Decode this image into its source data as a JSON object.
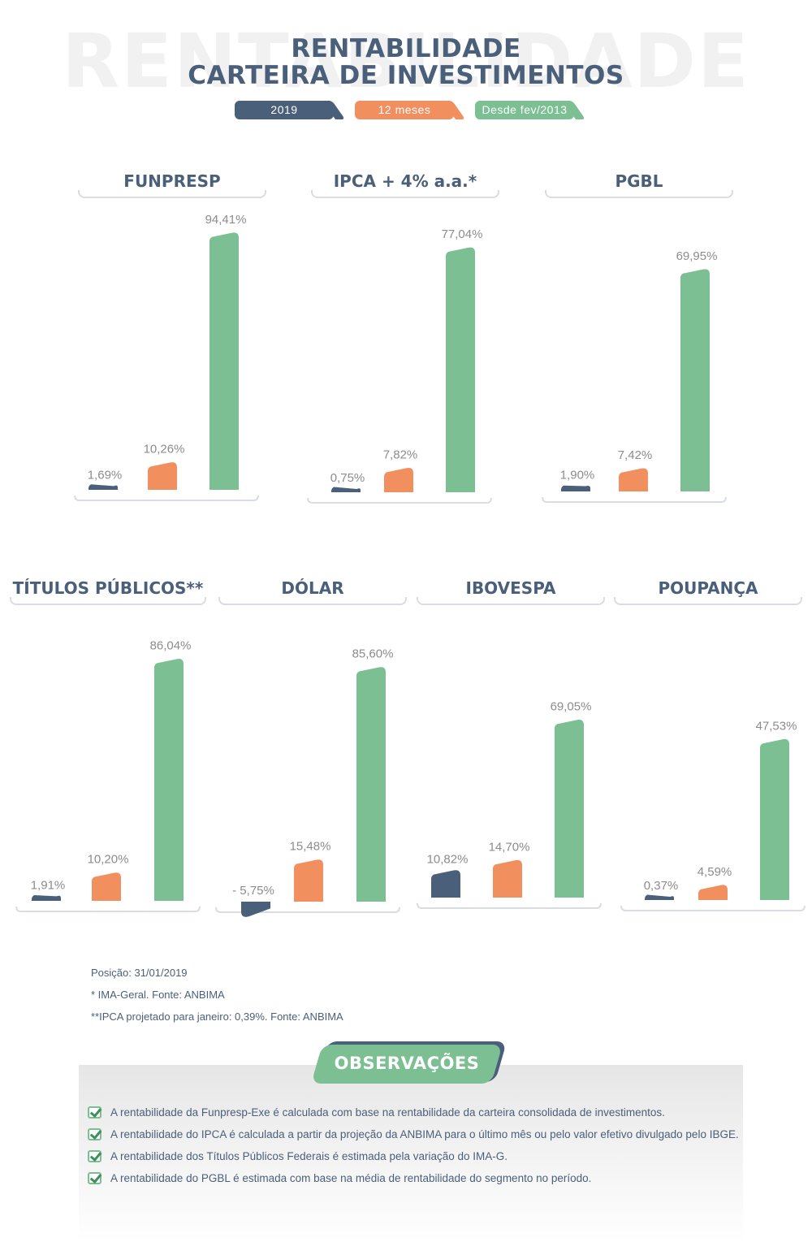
{
  "header": {
    "watermark": "RENTABILIDADE",
    "title_line1": "RENTABILIDADE",
    "title_line2": "CARTEIRA DE INVESTIMENTOS"
  },
  "colors": {
    "2019": "#4a5f7a",
    "12 meses": "#f28f5f",
    "Desde fev/2013": "#7bbf93"
  },
  "chart_data": {
    "type": "bar",
    "series": [
      {
        "name": "2019",
        "values": [
          1.69,
          0.75,
          1.9,
          1.91,
          -5.75,
          10.82,
          0.37
        ]
      },
      {
        "name": "12 meses",
        "values": [
          10.26,
          7.82,
          7.42,
          10.2,
          15.48,
          14.7,
          4.59
        ]
      },
      {
        "name": "Desde fev/2013",
        "values": [
          94.41,
          77.04,
          69.95,
          86.04,
          85.6,
          69.05,
          47.53
        ]
      }
    ],
    "categories": [
      "FUNPRESP",
      "IPCA + 4% a.a.*",
      "PGBL",
      "TÍTULOS PÚBLICOS**",
      "DÓLAR",
      "IBOVESPA",
      "POUPANÇA"
    ],
    "labels": [
      [
        "1,69%",
        "10,26%",
        "94,41%"
      ],
      [
        "0,75%",
        "7,82%",
        "77,04%"
      ],
      [
        "1,90%",
        "7,42%",
        "69,95%"
      ],
      [
        "1,91%",
        "10,20%",
        "86,04%"
      ],
      [
        "- 5,75%",
        "15,48%",
        "85,60%"
      ],
      [
        "10,82%",
        "14,70%",
        "69,05%"
      ],
      [
        "0,37%",
        "4,59%",
        "47,53%"
      ]
    ],
    "legend_position": "top-center",
    "grid": false
  },
  "notes": {
    "position": "Posição: 31/01/2019",
    "note1": "* IMA-Geral. Fonte: ANBIMA",
    "note2": "**IPCA projetado para janeiro: 0,39%. Fonte: ANBIMA"
  },
  "observacoes": {
    "title": "OBSERVAÇÕES",
    "items": [
      "A rentabilidade da Funpresp-Exe é calculada com base na rentabilidade da carteira consolidada de investimentos.",
      "A rentabilidade do IPCA é calculada a partir da projeção da ANBIMA para o último mês ou pelo valor efetivo divulgado pelo IBGE.",
      "A rentabilidade dos Títulos Públicos Federais é estimada pela variação do IMA-G.",
      "A rentabilidade do PGBL é estimada com base na média de rentabilidade do segmento no período."
    ]
  }
}
